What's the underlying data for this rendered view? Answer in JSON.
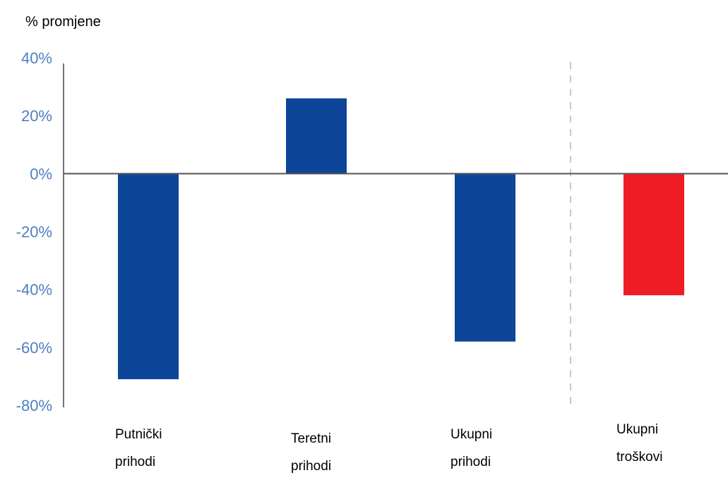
{
  "chart_data": {
    "type": "bar",
    "ylabel": "% promjene",
    "categories": [
      [
        "Putnički",
        "prihodi"
      ],
      [
        "Teretni",
        "prihodi"
      ],
      [
        "Ukupni",
        "prihodi"
      ],
      [
        "Ukupni",
        "troškovi"
      ]
    ],
    "values": [
      -71,
      26,
      -58,
      -42
    ],
    "unit": "%",
    "yticks": [
      "40%",
      "20%",
      "0%",
      "-20%",
      "-40%",
      "-60%",
      "-80%"
    ],
    "ylim": [
      -80,
      40
    ],
    "grid": false,
    "legend": "none",
    "bar_colors": [
      "#0d4699",
      "#0d4699",
      "#0d4699",
      "#ee1c25"
    ],
    "tick_label_color": "#4e7fc1",
    "separator": "dashed vertical line between Ukupni prihodi and Ukupni troškovi"
  }
}
